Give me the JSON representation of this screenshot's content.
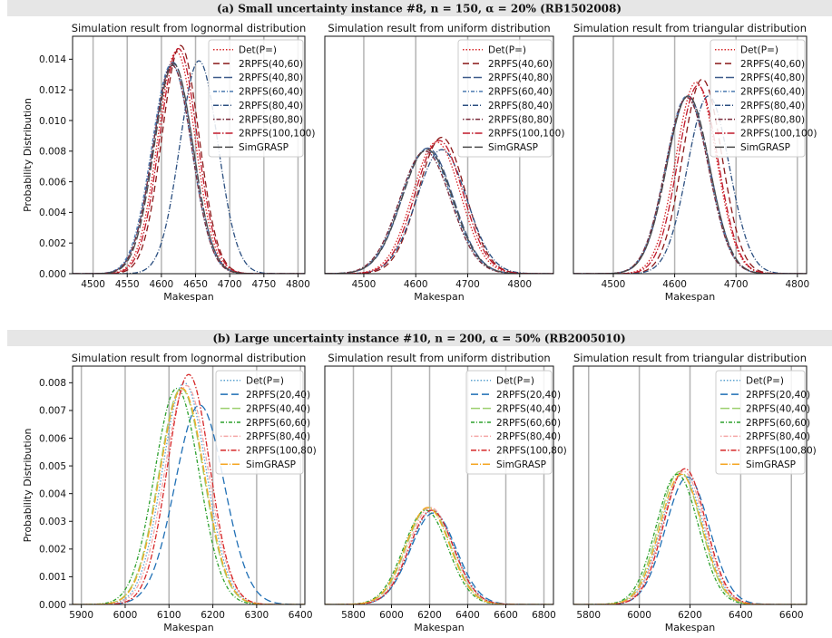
{
  "figure": {
    "banner_a": "(a) Small uncertainty instance #8, n = 150, α = 20% (RB1502008)",
    "banner_b": "(b) Large uncertainty instance #10, n = 200, α = 50% (RB2005010)"
  },
  "chart_data": [
    {
      "type": "line",
      "title": "Simulation result from lognormal distribution",
      "xlabel": "Makespan",
      "ylabel": "Probability Distribution",
      "xlim": [
        4470,
        4810
      ],
      "ylim": [
        0,
        0.0155
      ],
      "xticks": [
        4500,
        4550,
        4600,
        4650,
        4700,
        4750,
        4800
      ],
      "yticks": [
        0,
        0.002,
        0.004,
        0.006,
        0.008,
        0.01,
        0.012,
        0.014
      ],
      "ytick_labels": [
        "0.000",
        "0.002",
        "0.004",
        "0.006",
        "0.008",
        "0.010",
        "0.012",
        "0.014"
      ],
      "vgrid": [
        4500,
        4550,
        4600,
        4650,
        4700,
        4750,
        4800
      ],
      "legend": "top-right",
      "series": [
        {
          "name": "Det(P=)",
          "color": "#d62728",
          "dash": "1.5,2",
          "mean": 4622,
          "sd": 27.5,
          "peak": 0.0145
        },
        {
          "name": "2RPFS(40,60)",
          "color": "#8b1a1a",
          "dash": "7,4",
          "mean": 4628,
          "sd": 27,
          "peak": 0.0149
        },
        {
          "name": "2RPFS(40,80)",
          "color": "#3c5a8a",
          "dash": "9,3",
          "mean": 4617,
          "sd": 29,
          "peak": 0.0138
        },
        {
          "name": "2RPFS(60,40)",
          "color": "#4a7ab0",
          "dash": "4,2,1,2",
          "mean": 4615,
          "sd": 29,
          "peak": 0.0137
        },
        {
          "name": "2RPFS(80,40)",
          "color": "#2b4f80",
          "dash": "6,2,1,2",
          "mean": 4655,
          "sd": 28,
          "peak": 0.0139
        },
        {
          "name": "2RPFS(80,80)",
          "color": "#7a2a3a",
          "dash": "1.5,2,5,2",
          "mean": 4616,
          "sd": 28.5,
          "peak": 0.0136
        },
        {
          "name": "2RPFS(100,100)",
          "color": "#c0182a",
          "dash": "8,2,1.5,2",
          "mean": 4625,
          "sd": 27.5,
          "peak": 0.0147
        },
        {
          "name": "SimGRASP",
          "color": "#4a4a4a",
          "dash": "10,3",
          "mean": 4618,
          "sd": 28.5,
          "peak": 0.0137
        }
      ]
    },
    {
      "type": "line",
      "title": "Simulation result from uniform distribution",
      "xlabel": "Makespan",
      "ylabel": "",
      "xlim": [
        4425,
        4865
      ],
      "ylim": [
        0,
        0.0155
      ],
      "xticks": [
        4500,
        4600,
        4700,
        4800
      ],
      "yticks": [],
      "vgrid": [
        4500,
        4600,
        4700,
        4800
      ],
      "legend": "top-right",
      "series": [
        {
          "name": "Det(P=)",
          "color": "#d62728",
          "dash": "1.5,2",
          "mean": 4640,
          "sd": 46,
          "peak": 0.0086
        },
        {
          "name": "2RPFS(40,60)",
          "color": "#8b1a1a",
          "dash": "7,4",
          "mean": 4650,
          "sd": 45,
          "peak": 0.0089
        },
        {
          "name": "2RPFS(40,80)",
          "color": "#3c5a8a",
          "dash": "9,3",
          "mean": 4623,
          "sd": 49,
          "peak": 0.0082
        },
        {
          "name": "2RPFS(60,40)",
          "color": "#4a7ab0",
          "dash": "4,2,1,2",
          "mean": 4620,
          "sd": 49,
          "peak": 0.0081
        },
        {
          "name": "2RPFS(80,40)",
          "color": "#2b4f80",
          "dash": "6,2,1,2",
          "mean": 4650,
          "sd": 48,
          "peak": 0.0081
        },
        {
          "name": "2RPFS(80,80)",
          "color": "#7a2a3a",
          "dash": "1.5,2,5,2",
          "mean": 4618,
          "sd": 49,
          "peak": 0.008
        },
        {
          "name": "2RPFS(100,100)",
          "color": "#c0182a",
          "dash": "8,2,1.5,2",
          "mean": 4645,
          "sd": 46,
          "peak": 0.0087
        },
        {
          "name": "SimGRASP",
          "color": "#4a4a4a",
          "dash": "10,3",
          "mean": 4622,
          "sd": 49,
          "peak": 0.0081
        }
      ]
    },
    {
      "type": "line",
      "title": "Simulation result from triangular distribution",
      "xlabel": "Makespan",
      "ylabel": "",
      "xlim": [
        4435,
        4815
      ],
      "ylim": [
        0,
        0.0155
      ],
      "xticks": [
        4500,
        4600,
        4700,
        4800
      ],
      "yticks": [],
      "vgrid": [
        4500,
        4600,
        4700,
        4800
      ],
      "legend": "top-right",
      "series": [
        {
          "name": "Det(P=)",
          "color": "#d62728",
          "dash": "1.5,2",
          "mean": 4635,
          "sd": 33,
          "peak": 0.0125
        },
        {
          "name": "2RPFS(40,60)",
          "color": "#8b1a1a",
          "dash": "7,4",
          "mean": 4645,
          "sd": 32,
          "peak": 0.0127
        },
        {
          "name": "2RPFS(40,80)",
          "color": "#3c5a8a",
          "dash": "9,3",
          "mean": 4622,
          "sd": 35,
          "peak": 0.0116
        },
        {
          "name": "2RPFS(60,40)",
          "color": "#4a7ab0",
          "dash": "4,2,1,2",
          "mean": 4620,
          "sd": 35,
          "peak": 0.0116
        },
        {
          "name": "2RPFS(80,40)",
          "color": "#2b4f80",
          "dash": "6,2,1,2",
          "mean": 4655,
          "sd": 34,
          "peak": 0.0116
        },
        {
          "name": "2RPFS(80,80)",
          "color": "#7a2a3a",
          "dash": "1.5,2,5,2",
          "mean": 4620,
          "sd": 35,
          "peak": 0.0115
        },
        {
          "name": "2RPFS(100,100)",
          "color": "#c0182a",
          "dash": "8,2,1.5,2",
          "mean": 4638,
          "sd": 32.5,
          "peak": 0.0123
        },
        {
          "name": "SimGRASP",
          "color": "#4a4a4a",
          "dash": "10,3",
          "mean": 4622,
          "sd": 35,
          "peak": 0.0116
        }
      ]
    },
    {
      "type": "line",
      "title": "Simulation result from lognormal distribution",
      "xlabel": "Makespan",
      "ylabel": "Probability Distribution",
      "xlim": [
        5880,
        6410
      ],
      "ylim": [
        0,
        0.0086
      ],
      "xticks": [
        5900,
        6000,
        6100,
        6200,
        6300,
        6400
      ],
      "yticks": [
        0,
        0.001,
        0.002,
        0.003,
        0.004,
        0.005,
        0.006,
        0.007,
        0.008
      ],
      "ytick_labels": [
        "0.000",
        "0.001",
        "0.002",
        "0.003",
        "0.004",
        "0.005",
        "0.006",
        "0.007",
        "0.008"
      ],
      "vgrid": [
        5900,
        6000,
        6100,
        6200,
        6300,
        6400
      ],
      "legend": "top-right",
      "series": [
        {
          "name": "Det(P=)",
          "color": "#5ba3d0",
          "dash": "1.5,2",
          "mean": 6135,
          "sd": 50,
          "peak": 0.008
        },
        {
          "name": "2RPFS(20,40)",
          "color": "#1f6fb5",
          "dash": "8,4",
          "mean": 6170,
          "sd": 56,
          "peak": 0.0072
        },
        {
          "name": "2RPFS(40,40)",
          "color": "#9ccf6e",
          "dash": "10,3",
          "mean": 6128,
          "sd": 51,
          "peak": 0.0078
        },
        {
          "name": "2RPFS(60,60)",
          "color": "#2ca02c",
          "dash": "4,2,1,2",
          "mean": 6118,
          "sd": 51,
          "peak": 0.0078
        },
        {
          "name": "2RPFS(80,40)",
          "color": "#f4a6a6",
          "dash": "1.5,2,5,2",
          "mean": 6140,
          "sd": 50,
          "peak": 0.0079
        },
        {
          "name": "2RPFS(100,80)",
          "color": "#d62728",
          "dash": "6,2,1.5,2",
          "mean": 6145,
          "sd": 48,
          "peak": 0.0083
        },
        {
          "name": "SimGRASP",
          "color": "#f5a623",
          "dash": "8,2,1,2",
          "mean": 6130,
          "sd": 51,
          "peak": 0.0078
        }
      ]
    },
    {
      "type": "line",
      "title": "Simulation result from uniform distribution",
      "xlabel": "Makespan",
      "ylabel": "",
      "xlim": [
        5650,
        6850
      ],
      "ylim": [
        0,
        0.0086
      ],
      "xticks": [
        5800,
        6000,
        6200,
        6400,
        6600,
        6800
      ],
      "yticks": [],
      "vgrid": [
        5800,
        6000,
        6200,
        6400,
        6600,
        6800
      ],
      "legend": "top-right",
      "series": [
        {
          "name": "Det(P=)",
          "color": "#5ba3d0",
          "dash": "1.5,2",
          "mean": 6215,
          "sd": 116,
          "peak": 0.0034
        },
        {
          "name": "2RPFS(20,40)",
          "color": "#1f6fb5",
          "dash": "8,4",
          "mean": 6220,
          "sd": 120,
          "peak": 0.0033
        },
        {
          "name": "2RPFS(40,40)",
          "color": "#9ccf6e",
          "dash": "10,3",
          "mean": 6195,
          "sd": 116,
          "peak": 0.0035
        },
        {
          "name": "2RPFS(60,60)",
          "color": "#2ca02c",
          "dash": "4,2,1,2",
          "mean": 6180,
          "sd": 116,
          "peak": 0.0034
        },
        {
          "name": "2RPFS(80,40)",
          "color": "#f4a6a6",
          "dash": "1.5,2,5,2",
          "mean": 6205,
          "sd": 116,
          "peak": 0.0035
        },
        {
          "name": "2RPFS(100,80)",
          "color": "#d62728",
          "dash": "6,2,1.5,2",
          "mean": 6210,
          "sd": 116,
          "peak": 0.0034
        },
        {
          "name": "SimGRASP",
          "color": "#f5a623",
          "dash": "8,2,1,2",
          "mean": 6190,
          "sd": 116,
          "peak": 0.0035
        }
      ]
    },
    {
      "type": "line",
      "title": "Simulation result from triangular distribution",
      "xlabel": "Makespan",
      "ylabel": "",
      "xlim": [
        5740,
        6660
      ],
      "ylim": [
        0,
        0.0086
      ],
      "xticks": [
        5800,
        6000,
        6200,
        6400,
        6600
      ],
      "yticks": [],
      "vgrid": [
        5800,
        6000,
        6200,
        6400,
        6600
      ],
      "legend": "top-right",
      "series": [
        {
          "name": "Det(P=)",
          "color": "#5ba3d0",
          "dash": "1.5,2",
          "mean": 6170,
          "sd": 83,
          "peak": 0.0047
        },
        {
          "name": "2RPFS(20,40)",
          "color": "#1f6fb5",
          "dash": "8,4",
          "mean": 6190,
          "sd": 86,
          "peak": 0.0046
        },
        {
          "name": "2RPFS(40,40)",
          "color": "#9ccf6e",
          "dash": "10,3",
          "mean": 6160,
          "sd": 83,
          "peak": 0.0048
        },
        {
          "name": "2RPFS(60,60)",
          "color": "#2ca02c",
          "dash": "4,2,1,2",
          "mean": 6150,
          "sd": 83,
          "peak": 0.0047
        },
        {
          "name": "2RPFS(80,40)",
          "color": "#f4a6a6",
          "dash": "1.5,2,5,2",
          "mean": 6175,
          "sd": 83,
          "peak": 0.0048
        },
        {
          "name": "2RPFS(100,80)",
          "color": "#d62728",
          "dash": "6,2,1.5,2",
          "mean": 6180,
          "sd": 82,
          "peak": 0.0049
        },
        {
          "name": "SimGRASP",
          "color": "#f5a623",
          "dash": "8,2,1,2",
          "mean": 6165,
          "sd": 83,
          "peak": 0.0047
        }
      ]
    }
  ]
}
